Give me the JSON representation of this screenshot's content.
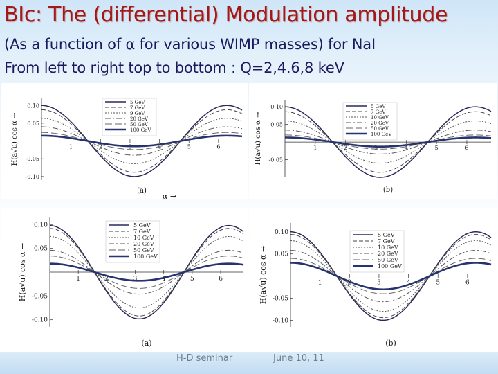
{
  "slide": {
    "title": "BIc: The (differential) Modulation amplitude",
    "subtitle1": "(As a function of α for various WIMP masses) for NaI",
    "subtitle2": "From left to right top to bottom : Q=2,4.6,8 keV",
    "footer_left": "H-D seminar",
    "footer_right": "June 10, 11"
  },
  "chart_data": [
    {
      "type": "line",
      "panel_label": "(a)",
      "xlabel": "α →",
      "ylabel": "H(a√u) cos α →",
      "xlim": [
        0,
        6.8
      ],
      "ylim": [
        -0.11,
        0.12
      ],
      "xticks": [
        "1",
        "2",
        "3",
        "4",
        "5",
        "6"
      ],
      "yticks": [
        "0.10",
        "0.05",
        "-0.05",
        "-0.10"
      ],
      "series": [
        {
          "name": "5 GeV",
          "amplitude": 0.1
        },
        {
          "name": "7 GeV",
          "amplitude": 0.088
        },
        {
          "name": "9 GeV",
          "amplitude": 0.064
        },
        {
          "name": "20 GeV",
          "amplitude": 0.04
        },
        {
          "name": "50 GeV",
          "amplitude": 0.024
        },
        {
          "name": "100 GeV",
          "amplitude": 0.015
        }
      ]
    },
    {
      "type": "line",
      "panel_label": "(b)",
      "xlabel": "",
      "ylabel": "H(a√u) cos α →",
      "xlim": [
        0,
        6.8
      ],
      "ylim": [
        -0.1,
        0.12
      ],
      "xticks": [
        "1",
        "2",
        "3",
        "4",
        "5",
        "6"
      ],
      "yticks": [
        "0.10",
        "0.05",
        "-0.05"
      ],
      "series": [
        {
          "name": "5 GeV",
          "amplitude": 0.1
        },
        {
          "name": "7 GeV",
          "amplitude": 0.086
        },
        {
          "name": "10 GeV",
          "amplitude": 0.06
        },
        {
          "name": "20 GeV",
          "amplitude": 0.034
        },
        {
          "name": "50 GeV",
          "amplitude": 0.02
        },
        {
          "name": "100 GeV",
          "amplitude": 0.013
        }
      ]
    },
    {
      "type": "line",
      "panel_label": "(a)",
      "xlabel": "",
      "ylabel": "H(a√u) cos α →",
      "xlim": [
        0,
        6.8
      ],
      "ylim": [
        -0.115,
        0.115
      ],
      "xticks": [
        "1",
        "2",
        "3",
        "4",
        "5",
        "6"
      ],
      "yticks": [
        "0.10",
        "0.05",
        "-0.05",
        "-0.10"
      ],
      "series": [
        {
          "name": "5 GeV",
          "amplitude": 0.098
        },
        {
          "name": "7 GeV",
          "amplitude": 0.092
        },
        {
          "name": "10 GeV",
          "amplitude": 0.075
        },
        {
          "name": "20 GeV",
          "amplitude": 0.046
        },
        {
          "name": "50 GeV",
          "amplitude": 0.034
        },
        {
          "name": "100 GeV",
          "amplitude": 0.018
        }
      ]
    },
    {
      "type": "line",
      "panel_label": "(b)",
      "xlabel": "",
      "ylabel": "H(a√u) cos α →",
      "xlim": [
        0,
        6.8
      ],
      "ylim": [
        -0.115,
        0.12
      ],
      "xticks": [
        "1",
        "2",
        "3",
        "4",
        "5",
        "6"
      ],
      "yticks": [
        "0.10",
        "0.05",
        "-0.05",
        "-0.10"
      ],
      "series": [
        {
          "name": "5 GeV",
          "amplitude": 0.1
        },
        {
          "name": "7 GeV",
          "amplitude": 0.094
        },
        {
          "name": "10 GeV",
          "amplitude": 0.08
        },
        {
          "name": "20 GeV",
          "amplitude": 0.058
        },
        {
          "name": "50 GeV",
          "amplitude": 0.04
        },
        {
          "name": "100 GeV",
          "amplitude": 0.03
        }
      ]
    }
  ]
}
